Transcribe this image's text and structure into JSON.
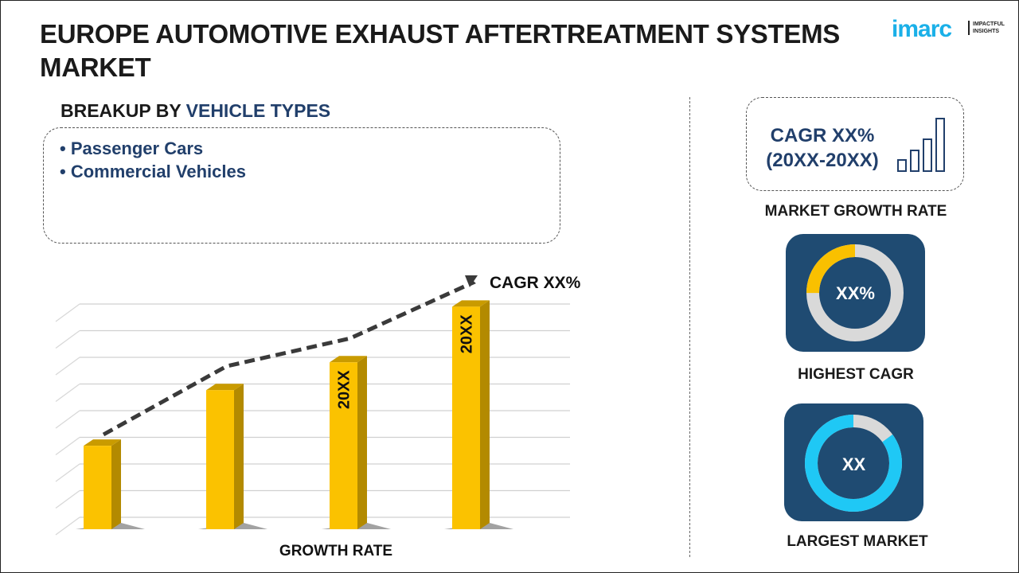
{
  "header": {
    "title": "EUROPE AUTOMOTIVE EXHAUST AFTERTREATMENT SYSTEMS MARKET",
    "logo_text": "imarc",
    "logo_tagline": "IMPACTFUL INSIGHTS"
  },
  "breakup": {
    "prefix": "BREAKUP BY ",
    "highlight": "VEHICLE TYPES",
    "items": [
      "• Passenger Cars",
      "• Commercial Vehicles"
    ]
  },
  "cagr_box": {
    "line1": "CAGR XX%",
    "line2": "(20XX-20XX)",
    "label": "MARKET GROWTH RATE",
    "icon": "bar-growth-icon"
  },
  "highest": {
    "value": "XX%",
    "label": "HIGHEST CAGR",
    "ring_fraction": 0.25,
    "ring_color": "#f9c000",
    "track_color": "#d9d9d9"
  },
  "largest": {
    "value": "XX",
    "label": "LARGEST MARKET",
    "ring_fraction": 0.85,
    "ring_color": "#1fc8f5",
    "track_color": "#d9d9d9"
  },
  "chart_data": {
    "type": "bar",
    "xlabel": "GROWTH RATE",
    "annotation": "CAGR XX%",
    "values": [
      3,
      5,
      6,
      8
    ],
    "bar_labels": [
      "",
      "",
      "20XX",
      "20XX"
    ],
    "ylim": [
      0,
      8.5
    ],
    "grid": true,
    "trend_line": true,
    "colors": {
      "bar": "#fbc200",
      "bar_side": "#b38a00",
      "trend": "#3a3a3a"
    }
  }
}
